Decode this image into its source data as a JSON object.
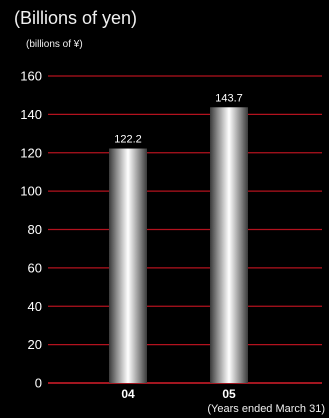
{
  "chart_data": {
    "type": "bar",
    "title": "(Billions of yen)",
    "unit_label": "(billions of ¥)",
    "footnote": "(Years ended March 31)",
    "categories": [
      "04",
      "05"
    ],
    "values": [
      122.2,
      143.7
    ],
    "value_labels": [
      "122.2",
      "143.7"
    ],
    "ylim": [
      0,
      160
    ],
    "yticks": [
      0,
      20,
      40,
      60,
      80,
      100,
      120,
      140,
      160
    ],
    "grid": true,
    "colors": {
      "background": "#000000",
      "gridline": "#b3121e",
      "axis": "#d81e2a",
      "bar_edge": "#4a4a4a",
      "bar_highlight": "#ffffff"
    }
  }
}
